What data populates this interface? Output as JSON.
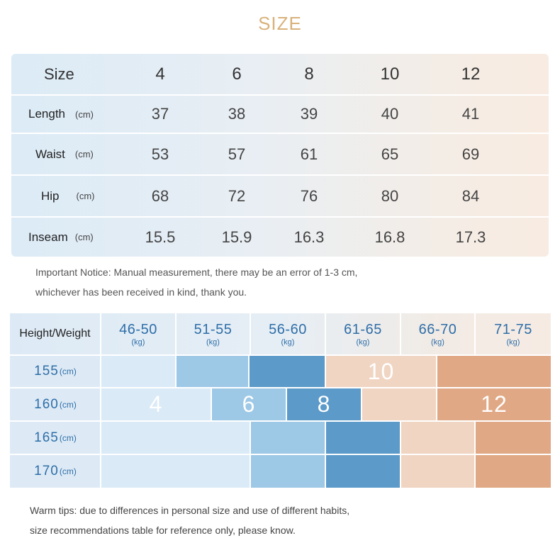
{
  "title": "SIZE",
  "size_table": {
    "header_label": "Size",
    "sizes": [
      "4",
      "6",
      "8",
      "10",
      "12"
    ],
    "rows": [
      {
        "label": "Length",
        "unit": "(cm)",
        "values": [
          "37",
          "38",
          "39",
          "40",
          "41"
        ]
      },
      {
        "label": "Waist",
        "unit": "(cm)",
        "values": [
          "53",
          "57",
          "61",
          "65",
          "69"
        ]
      },
      {
        "label": "Hip",
        "unit": "(cm)",
        "values": [
          "68",
          "72",
          "76",
          "80",
          "84"
        ]
      },
      {
        "label": "Inseam",
        "unit": "(cm)",
        "values": [
          "15.5",
          "15.9",
          "16.3",
          "16.8",
          "17.3"
        ]
      }
    ]
  },
  "notice": {
    "line1": "Important Notice: Manual measurement, there may be an error of 1-3 cm,",
    "line2": "whichever has been received in kind, thank you."
  },
  "recommend_table": {
    "corner_label": "Height/Weight",
    "weight_ranges": [
      {
        "range": "46-50",
        "unit": "(kg)"
      },
      {
        "range": "51-55",
        "unit": "(kg)"
      },
      {
        "range": "56-60",
        "unit": "(kg)"
      },
      {
        "range": "61-65",
        "unit": "(kg)"
      },
      {
        "range": "66-70",
        "unit": "(kg)"
      },
      {
        "range": "71-75",
        "unit": "(kg)"
      }
    ],
    "heights": [
      {
        "value": "155",
        "unit": "(cm)"
      },
      {
        "value": "160",
        "unit": "(cm)"
      },
      {
        "value": "165",
        "unit": "(cm)"
      },
      {
        "value": "170",
        "unit": "(cm)"
      }
    ],
    "size_labels": {
      "s4": "4",
      "s6": "6",
      "s8": "8",
      "s10": "10",
      "s12": "12"
    },
    "colors": {
      "size4": "#daeaf7",
      "size6": "#9dc8e6",
      "size8": "#5b9ac9",
      "size10": "#f0d5c3",
      "size12": "#e0a885",
      "header": "#ddeaf5",
      "header_warm": "#f4ebe4"
    }
  },
  "warm_tips": {
    "line1": "Warm tips: due to differences in personal size and use of different habits,",
    "line2": "size recommendations table for reference only, please know."
  }
}
